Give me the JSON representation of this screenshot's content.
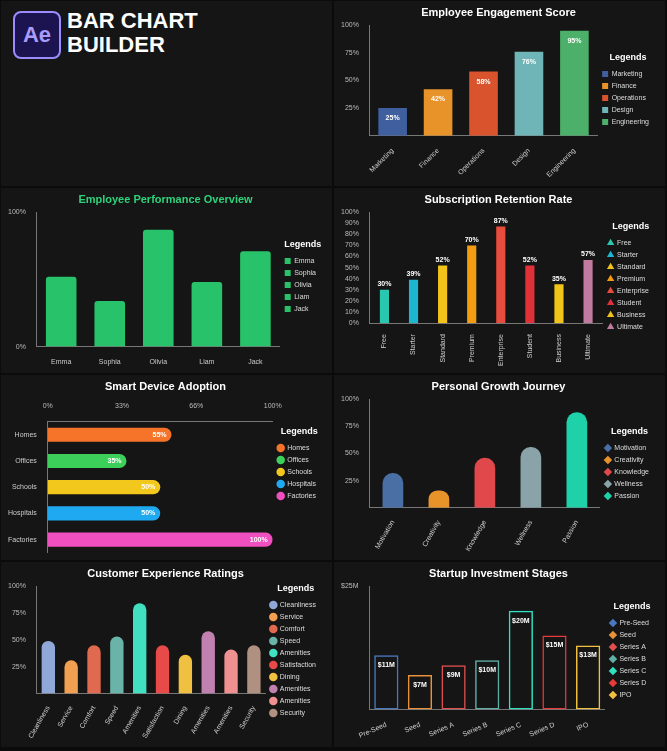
{
  "header": {
    "badge": "Ae",
    "title": "BAR CHART BUILDER"
  },
  "chart_data": [
    {
      "type": "bar",
      "title": "Employee Engagement Score",
      "categories": [
        "Marketing",
        "Finance",
        "Operations",
        "Design",
        "Engineering"
      ],
      "values": [
        25,
        42,
        58,
        76,
        95
      ],
      "value_labels": [
        "25%",
        "42%",
        "58%",
        "76%",
        "95%"
      ],
      "colors": [
        "#3f5f9e",
        "#e8932a",
        "#d9532c",
        "#6fb5b8",
        "#4caf6a"
      ],
      "ylim": [
        0,
        100
      ],
      "yticks": [
        {
          "value": 25,
          "label": "25%"
        },
        {
          "value": 50,
          "label": "50%"
        },
        {
          "value": 75,
          "label": "75%"
        },
        {
          "value": 100,
          "label": "100%"
        }
      ],
      "grid": false,
      "legend": "right",
      "legend_title": "Legends",
      "marker": "square",
      "data_labels": true
    },
    {
      "type": "bar",
      "title": "Employee Performance Overview",
      "categories": [
        "Emma",
        "Sophia",
        "Olivia",
        "Liam",
        "Jack"
      ],
      "values": [
        52,
        34,
        87,
        48,
        71
      ],
      "color": "#27c26a",
      "ylim": [
        0,
        100
      ],
      "yticks": [
        {
          "value": 0,
          "label": "0%"
        },
        {
          "value": 100,
          "label": "100%"
        }
      ],
      "grid": false,
      "legend": "right",
      "legend_title": "Legends",
      "marker": "square"
    },
    {
      "type": "bar",
      "title": "Subscription Retention Rate",
      "categories": [
        "Free",
        "Starter",
        "Standard",
        "Premium",
        "Enterprise",
        "Student",
        "Business",
        "Ultimate"
      ],
      "values": [
        30,
        39,
        52,
        70,
        87,
        52,
        35,
        57
      ],
      "value_labels": [
        "30%",
        "39%",
        "52%",
        "70%",
        "87%",
        "52%",
        "35%",
        "57%"
      ],
      "colors": [
        "#29c7b0",
        "#1eb5d0",
        "#f2c318",
        "#f39c12",
        "#e74c3c",
        "#e0303a",
        "#f0c419",
        "#c27ba0"
      ],
      "ylim": [
        0,
        100
      ],
      "yticks": [
        {
          "value": 0,
          "label": "0%"
        },
        {
          "value": 10,
          "label": "10%"
        },
        {
          "value": 20,
          "label": "20%"
        },
        {
          "value": 30,
          "label": "30%"
        },
        {
          "value": 40,
          "label": "40%"
        },
        {
          "value": 50,
          "label": "50%"
        },
        {
          "value": 60,
          "label": "60%"
        },
        {
          "value": 70,
          "label": "70%"
        },
        {
          "value": 80,
          "label": "80%"
        },
        {
          "value": 90,
          "label": "90%"
        },
        {
          "value": 100,
          "label": "100%"
        }
      ],
      "grid": false,
      "legend": "right",
      "legend_title": "Legends",
      "marker": "triangle",
      "data_labels": true
    },
    {
      "type": "bar",
      "title": "Smart Device Adoption",
      "orientation": "horizontal",
      "categories": [
        "Homes",
        "Offices",
        "Schools",
        "Hospitals",
        "Factories"
      ],
      "values": [
        55,
        35,
        50,
        50,
        100
      ],
      "value_labels": [
        "55%",
        "35%",
        "50%",
        "50%",
        "100%"
      ],
      "colors": [
        "#f5742a",
        "#3ccf5a",
        "#f2c81d",
        "#1fa9f0",
        "#f04fbf"
      ],
      "xlim": [
        0,
        100
      ],
      "xticks": [
        {
          "value": 0,
          "label": "0%"
        },
        {
          "value": 33,
          "label": "33%"
        },
        {
          "value": 66,
          "label": "66%"
        },
        {
          "value": 100,
          "label": "100%"
        }
      ],
      "grid": false,
      "legend": "right",
      "legend_title": "Legends",
      "marker": "circle",
      "data_labels": true
    },
    {
      "type": "bar",
      "title": "Personal Growth Journey",
      "categories": [
        "Motivation",
        "Creativity",
        "Knowledge",
        "Wellness",
        "Passion"
      ],
      "values": [
        32,
        16,
        46,
        56,
        88
      ],
      "colors": [
        "#4a6fa5",
        "#e8922a",
        "#e0484b",
        "#8aa3a8",
        "#1fd1a9"
      ],
      "ylim": [
        0,
        100
      ],
      "yticks": [
        {
          "value": 25,
          "label": "25%"
        },
        {
          "value": 50,
          "label": "50%"
        },
        {
          "value": 75,
          "label": "75%"
        },
        {
          "value": 100,
          "label": "100%"
        }
      ],
      "grid": false,
      "legend": "right",
      "legend_title": "Legends",
      "marker": "diamond"
    },
    {
      "type": "bar",
      "title": "Customer Experience Ratings",
      "categories": [
        "Cleanliness",
        "Service",
        "Comfort",
        "Speed",
        "Amenities",
        "Satisfaction",
        "Dining",
        "Amenities",
        "Amenities",
        "Security"
      ],
      "values": [
        49,
        31,
        45,
        53,
        84,
        45,
        36,
        58,
        41,
        45
      ],
      "colors": [
        "#8fa8d8",
        "#f0a050",
        "#e06a50",
        "#6ab3a8",
        "#40e0c0",
        "#e84a4a",
        "#f0c040",
        "#c080b0",
        "#f09090",
        "#b09080"
      ],
      "ylim": [
        0,
        100
      ],
      "yticks": [
        {
          "value": 25,
          "label": "25%"
        },
        {
          "value": 50,
          "label": "50%"
        },
        {
          "value": 75,
          "label": "75%"
        },
        {
          "value": 100,
          "label": "100%"
        }
      ],
      "grid": false,
      "legend": "right",
      "legend_title": "Legends",
      "marker": "circle"
    },
    {
      "type": "bar",
      "title": "Startup Investment Stages",
      "categories": [
        "Pre-Seed",
        "Seed",
        "Series A",
        "Series B",
        "Series C",
        "Series D",
        "IPO"
      ],
      "values": [
        11,
        7,
        9,
        10,
        20,
        15,
        13
      ],
      "value_labels": [
        "$11M",
        "$7M",
        "$9M",
        "$10M",
        "$20M",
        "$15M",
        "$13M"
      ],
      "colors": [
        "#4a78c0",
        "#e8903a",
        "#e05050",
        "#60b0a8",
        "#30e0c0",
        "#e83a3a",
        "#f0c040"
      ],
      "ylim": [
        0,
        25
      ],
      "yticks": [
        {
          "value": 25,
          "label": "$25M"
        }
      ],
      "grid": false,
      "legend": "right",
      "legend_title": "Legends",
      "marker": "diamond",
      "data_labels": true
    }
  ]
}
